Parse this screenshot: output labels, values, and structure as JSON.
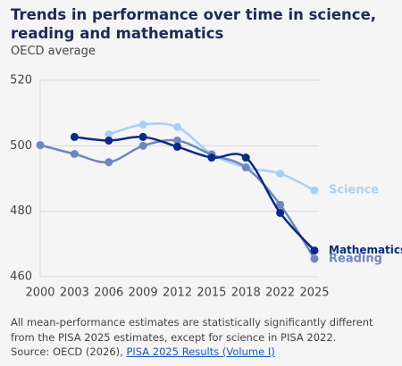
{
  "chart_data": {
    "type": "line",
    "title": "Trends in performance over time in science, reading and mathematics",
    "subtitle": "OECD average",
    "categories": [
      "2000",
      "2003",
      "2006",
      "2009",
      "2012",
      "2015",
      "2018",
      "2022",
      "2025"
    ],
    "series": [
      {
        "name": "Science",
        "color": "#a8d0f5",
        "values": [
          null,
          null,
          503.5,
          506.5,
          505.7,
          497.5,
          493.4,
          491.5,
          486.4
        ]
      },
      {
        "name": "Reading",
        "color": "#6e86c0",
        "values": [
          500.2,
          497.5,
          495,
          500,
          501.6,
          497.3,
          493.4,
          482,
          465.5
        ]
      },
      {
        "name": "Mathematics",
        "color": "#0b2a84",
        "values": [
          null,
          502.7,
          501.6,
          502.7,
          499.7,
          496.4,
          496.4,
          479.5,
          468
        ]
      }
    ],
    "ylim": [
      460,
      520
    ],
    "yticks": [
      460,
      480,
      500,
      520
    ],
    "grid": true,
    "note": "All mean-performance estimates are statistically significantly different from the PISA 2025 estimates, except for science in PISA 2022.",
    "source": "Source: OECD (2026),",
    "source_link": "PISA 2025 Results (Volume I)"
  }
}
